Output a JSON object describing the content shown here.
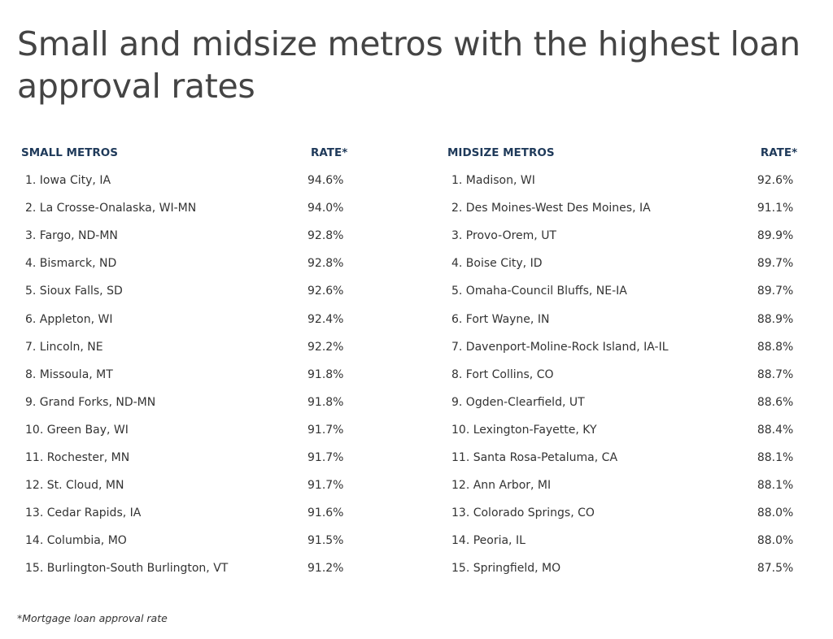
{
  "title": "Small and midsize metros with the highest loan approval rates",
  "small": {
    "header_metro": "SMALL METROS",
    "header_rate": "RATE*",
    "rows": [
      {
        "metro": "1. Iowa City, IA",
        "rate": "94.6%"
      },
      {
        "metro": "2. La Crosse-Onalaska, WI-MN",
        "rate": "94.0%"
      },
      {
        "metro": "3. Fargo, ND-MN",
        "rate": "92.8%"
      },
      {
        "metro": "4. Bismarck, ND",
        "rate": "92.8%"
      },
      {
        "metro": "5. Sioux Falls, SD",
        "rate": "92.6%"
      },
      {
        "metro": "6. Appleton, WI",
        "rate": "92.4%"
      },
      {
        "metro": "7. Lincoln, NE",
        "rate": "92.2%"
      },
      {
        "metro": "8. Missoula, MT",
        "rate": "91.8%"
      },
      {
        "metro": "9. Grand Forks, ND-MN",
        "rate": "91.8%"
      },
      {
        "metro": "10. Green Bay, WI",
        "rate": "91.7%"
      },
      {
        "metro": "11. Rochester, MN",
        "rate": "91.7%"
      },
      {
        "metro": "12. St. Cloud, MN",
        "rate": "91.7%"
      },
      {
        "metro": "13. Cedar Rapids, IA",
        "rate": "91.6%"
      },
      {
        "metro": "14. Columbia, MO",
        "rate": "91.5%"
      },
      {
        "metro": "15. Burlington-South Burlington, VT",
        "rate": "91.2%"
      }
    ]
  },
  "midsize": {
    "header_metro": "MIDSIZE METROS",
    "header_rate": "RATE*",
    "rows": [
      {
        "metro": "1. Madison, WI",
        "rate": "92.6%"
      },
      {
        "metro": "2. Des Moines-West Des Moines, IA",
        "rate": "91.1%"
      },
      {
        "metro": "3. Provo-Orem, UT",
        "rate": "89.9%"
      },
      {
        "metro": "4. Boise City, ID",
        "rate": "89.7%"
      },
      {
        "metro": "5. Omaha-Council Bluffs, NE-IA",
        "rate": "89.7%"
      },
      {
        "metro": "6. Fort Wayne, IN",
        "rate": "88.9%"
      },
      {
        "metro": "7. Davenport-Moline-Rock Island, IA-IL",
        "rate": "88.8%"
      },
      {
        "metro": "8. Fort Collins, CO",
        "rate": "88.7%"
      },
      {
        "metro": "9. Ogden-Clearfield, UT",
        "rate": "88.6%"
      },
      {
        "metro": "10. Lexington-Fayette, KY",
        "rate": "88.4%"
      },
      {
        "metro": "11. Santa Rosa-Petaluma, CA",
        "rate": "88.1%"
      },
      {
        "metro": "12. Ann Arbor, MI",
        "rate": "88.1%"
      },
      {
        "metro": "13. Colorado Springs, CO",
        "rate": "88.0%"
      },
      {
        "metro": "14. Peoria, IL",
        "rate": "88.0%"
      },
      {
        "metro": "15. Springfield, MO",
        "rate": "87.5%"
      }
    ]
  },
  "footnote": "*Mortgage loan approval rate"
}
